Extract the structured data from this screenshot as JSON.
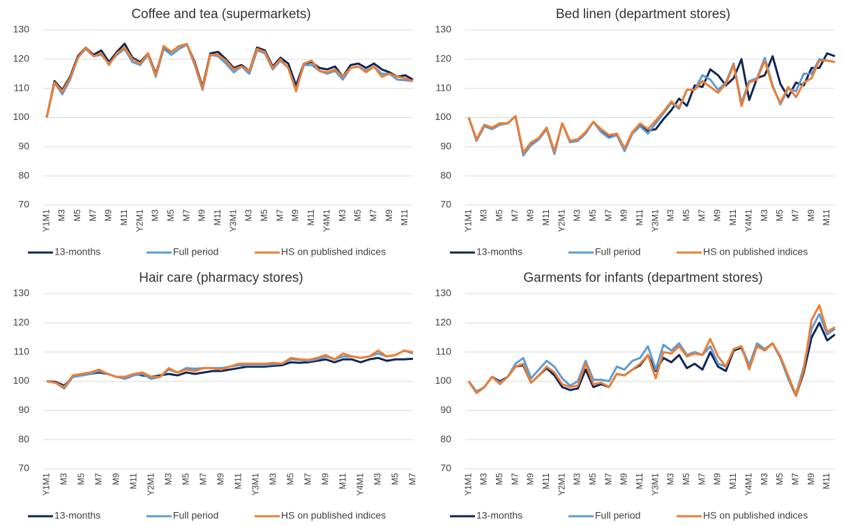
{
  "chart_data": [
    {
      "type": "line",
      "title": "Coffee and tea (supermarkets)",
      "categories": [
        "Y1M1",
        null,
        "M3",
        null,
        "M5",
        null,
        "M7",
        null,
        "M9",
        null,
        "M11",
        null,
        "Y2M1",
        null,
        "M3",
        null,
        "M5",
        null,
        "M7",
        null,
        "M9",
        null,
        "M11",
        null,
        "Y3M1",
        null,
        "M3",
        null,
        "M5",
        null,
        "M7",
        null,
        "M9",
        null,
        "M11",
        null,
        "Y4M1",
        null,
        "M3",
        null,
        "M5",
        null,
        "M7",
        null,
        "M9",
        null,
        "M11",
        null
      ],
      "series": [
        {
          "name": "13-months",
          "color": "#0d2557",
          "values": [
            100,
            112.5,
            109.5,
            114,
            121,
            124,
            121.5,
            123,
            119,
            122.5,
            125.3,
            120.5,
            119,
            122,
            115,
            124,
            122.5,
            124.5,
            125,
            119,
            110.5,
            122,
            122.5,
            120,
            117,
            118,
            116,
            124,
            123,
            117.5,
            120.5,
            118.5,
            111,
            118.5,
            119,
            117,
            116.5,
            117.5,
            114,
            118,
            118.5,
            117,
            118.5,
            116.5,
            115.5,
            114,
            114.5,
            113
          ]
        },
        {
          "name": "Full period",
          "color": "#5b9bd5",
          "values": [
            100,
            112,
            108,
            113,
            120.5,
            123.5,
            121,
            121.5,
            118.5,
            121.5,
            123.5,
            119,
            118,
            121.5,
            114,
            123.5,
            121.5,
            123.5,
            125,
            118,
            109.5,
            121.5,
            121,
            118.5,
            115.5,
            117.5,
            115,
            123,
            122,
            116.5,
            119.5,
            117,
            109.5,
            118,
            118,
            116,
            115,
            116,
            113,
            117,
            117.5,
            116,
            117.5,
            115,
            115,
            113,
            112.8,
            112.5
          ]
        },
        {
          "name": "HS on published indices",
          "color": "#ed7d31",
          "values": [
            100,
            112,
            109,
            113.5,
            120.5,
            124,
            121,
            122,
            118,
            122,
            124,
            120,
            118.5,
            122,
            114.5,
            124.5,
            122.5,
            124.5,
            125.2,
            118.5,
            110,
            121.5,
            121.5,
            119.5,
            116.5,
            117.5,
            116,
            123.5,
            122.5,
            117,
            120,
            117,
            109,
            118.5,
            119.5,
            116,
            115.5,
            116.5,
            114,
            117,
            117.5,
            115.5,
            117.5,
            114,
            115,
            114,
            113.5,
            112.5
          ]
        }
      ],
      "ylim": [
        70,
        130
      ],
      "yticks": [
        70,
        80,
        90,
        100,
        110,
        120,
        130
      ],
      "grid": true
    },
    {
      "type": "line",
      "title": "Bed linen (department stores)",
      "categories": [
        "Y1M1",
        null,
        "M3",
        null,
        "M5",
        null,
        "M7",
        null,
        "M9",
        null,
        "M11",
        null,
        "Y2M1",
        null,
        "M3",
        null,
        "M5",
        null,
        "M7",
        null,
        "M9",
        null,
        "M11",
        null,
        "Y3M1",
        null,
        "M3",
        null,
        "M5",
        null,
        "M7",
        null,
        "M9",
        null,
        "M11",
        null,
        "Y4M1",
        null,
        "M3",
        null,
        "M5",
        null,
        "M7",
        null,
        "M9",
        null,
        "M11",
        null
      ],
      "series": [
        {
          "name": "13-months",
          "color": "#0d2557",
          "values": [
            100,
            92.5,
            97.5,
            96.5,
            98,
            98,
            100.5,
            87.5,
            91,
            93,
            96.5,
            88,
            98,
            92,
            92.5,
            95,
            98.5,
            95.5,
            93.5,
            94.5,
            89,
            95,
            97.5,
            95.5,
            96,
            99.5,
            102.5,
            106.5,
            104,
            111,
            110.5,
            116.5,
            114.5,
            111,
            113.5,
            120,
            106,
            113.5,
            114.5,
            121,
            111.5,
            107,
            112,
            111,
            117,
            117,
            122,
            121
          ]
        },
        {
          "name": "Full period",
          "color": "#5b9bd5",
          "values": [
            100,
            92,
            97,
            96,
            97.5,
            98,
            100.5,
            87,
            90.5,
            92.5,
            96,
            87.5,
            98,
            91.5,
            92,
            94.5,
            98.5,
            95,
            93,
            94,
            88.5,
            94.5,
            97,
            94.5,
            98,
            101.5,
            105,
            103,
            109.5,
            109.5,
            114.5,
            113,
            109.5,
            112,
            118.5,
            105,
            112.5,
            113.5,
            120.5,
            111,
            104.5,
            110,
            109,
            115,
            115,
            120,
            119.5,
            119
          ]
        },
        {
          "name": "HS on published indices",
          "color": "#ed7d31",
          "values": [
            100,
            92.5,
            97.5,
            96.5,
            98,
            98,
            100.5,
            88,
            91.5,
            93,
            96.5,
            88.5,
            98,
            92,
            92.5,
            95,
            98.5,
            96,
            94,
            94.5,
            89.5,
            95,
            98,
            96,
            99,
            102,
            105.5,
            103.5,
            109.5,
            109.5,
            112.5,
            110.5,
            108.5,
            111.5,
            118,
            104,
            112,
            113,
            119.5,
            110.5,
            105,
            110.5,
            107,
            112,
            113.5,
            119.5,
            119.5,
            119
          ]
        }
      ],
      "ylim": [
        70,
        130
      ],
      "yticks": [
        70,
        80,
        90,
        100,
        110,
        120,
        130
      ],
      "grid": true
    },
    {
      "type": "line",
      "title": "Hair care (pharmacy stores)",
      "categories": [
        "Y1M1",
        null,
        "M3",
        null,
        "M5",
        null,
        "M7",
        null,
        "M9",
        null,
        "M11",
        null,
        "Y2M1",
        null,
        "M3",
        null,
        "M5",
        null,
        "M7",
        null,
        "M9",
        null,
        "M11",
        null,
        "Y3M1",
        null,
        "M3",
        null,
        "M5",
        null,
        "M7",
        null,
        "M9",
        null,
        "M11",
        null,
        "Y4M1",
        null,
        "M3",
        null,
        "M5",
        null,
        "M7"
      ],
      "series": [
        {
          "name": "13-months",
          "color": "#0d2557",
          "values": [
            100,
            99.8,
            98.5,
            101.5,
            102,
            102.5,
            103,
            102.5,
            101.5,
            101.5,
            102.5,
            102,
            101.5,
            102,
            102.5,
            102,
            103,
            102.5,
            103,
            103.5,
            103.5,
            104,
            104.5,
            105,
            105,
            105,
            105.3,
            105.5,
            106.5,
            106.3,
            106.5,
            107,
            107.5,
            106.5,
            107.5,
            107.5,
            106.5,
            107.5,
            108,
            107,
            107.5,
            107.5,
            107.7
          ]
        },
        {
          "name": "Full period",
          "color": "#5b9bd5",
          "values": [
            100,
            99.5,
            97.5,
            101.5,
            102,
            102.5,
            103.5,
            102.5,
            101.5,
            100.8,
            102,
            102.5,
            100.8,
            101.5,
            104,
            103,
            104.5,
            104.3,
            104.5,
            104.5,
            104.5,
            105,
            105.5,
            105.5,
            105.5,
            105.5,
            105.8,
            106,
            107.5,
            107.3,
            107,
            107.5,
            108.5,
            107.5,
            108.5,
            108.5,
            108,
            108.5,
            109.5,
            108.5,
            109,
            110.5,
            109.5
          ]
        },
        {
          "name": "HS on published indices",
          "color": "#ed7d31",
          "values": [
            100,
            99.5,
            98,
            102,
            102.5,
            103,
            104,
            102.5,
            101.5,
            101.5,
            102.5,
            103,
            101.5,
            101.5,
            104.5,
            103,
            104,
            103.5,
            104.5,
            104.5,
            104,
            105,
            106,
            106,
            106,
            106,
            106.3,
            106,
            108,
            107.5,
            107.3,
            108,
            109,
            107.5,
            109.5,
            108.5,
            108,
            108.5,
            110.5,
            108.5,
            109,
            110.5,
            110
          ]
        }
      ],
      "ylim": [
        70,
        130
      ],
      "yticks": [
        70,
        80,
        90,
        100,
        110,
        120,
        130
      ],
      "grid": true
    },
    {
      "type": "line",
      "title": "Garments for infants (department stores)",
      "categories": [
        "Y1M1",
        null,
        "M3",
        null,
        "M5",
        null,
        "M7",
        null,
        "M9",
        null,
        "M11",
        null,
        "Y2M1",
        null,
        "M3",
        null,
        "M5",
        null,
        "M7",
        null,
        "M9",
        null,
        "M11",
        null,
        "Y3M1",
        null,
        "M3",
        null,
        "M5",
        null,
        "M7",
        null,
        "M9",
        null,
        "M11",
        null,
        "Y4M1",
        null,
        "M3",
        null,
        "M5",
        null,
        "M7",
        null,
        "M9",
        null,
        "M11",
        null
      ],
      "series": [
        {
          "name": "13-months",
          "color": "#0d2557",
          "values": [
            100,
            96,
            98,
            101.5,
            100,
            101.5,
            105,
            105.5,
            99.5,
            102,
            104.5,
            102,
            98,
            97,
            97.5,
            104,
            98,
            99,
            98,
            102.5,
            102,
            104,
            105.5,
            109,
            103.5,
            108,
            106.5,
            109,
            104.5,
            106,
            104,
            110,
            105,
            103.5,
            110.5,
            111.5,
            105,
            112,
            111,
            113,
            108,
            101,
            95,
            103,
            115,
            120,
            114,
            116
          ]
        },
        {
          "name": "Full period",
          "color": "#5b9bd5",
          "values": [
            100,
            96.5,
            98,
            101.5,
            99.5,
            101.5,
            106,
            108,
            101,
            104,
            107,
            105,
            101,
            98.5,
            100,
            107,
            100.5,
            100.5,
            100,
            105,
            104,
            107,
            108,
            112,
            104,
            112.5,
            110.5,
            113,
            109,
            110,
            109,
            112,
            106,
            105,
            111,
            112,
            105.5,
            113,
            111,
            113,
            108,
            101,
            95.5,
            105,
            118,
            123,
            116,
            118
          ]
        },
        {
          "name": "HS on published indices",
          "color": "#ed7d31",
          "values": [
            100,
            96,
            98,
            101.5,
            99,
            101.5,
            105,
            106,
            99.5,
            102,
            105,
            103,
            99,
            98,
            98.5,
            106,
            99,
            99.5,
            98,
            102.5,
            102,
            104,
            106,
            109,
            101,
            110,
            109.5,
            112,
            108.5,
            109.5,
            109,
            114.5,
            108.5,
            105,
            111,
            112,
            104,
            112,
            110.5,
            113,
            108.5,
            102,
            95,
            104,
            121,
            126,
            117,
            118.5
          ]
        }
      ],
      "ylim": [
        70,
        130
      ],
      "yticks": [
        70,
        80,
        90,
        100,
        110,
        120,
        130
      ],
      "grid": true
    }
  ]
}
